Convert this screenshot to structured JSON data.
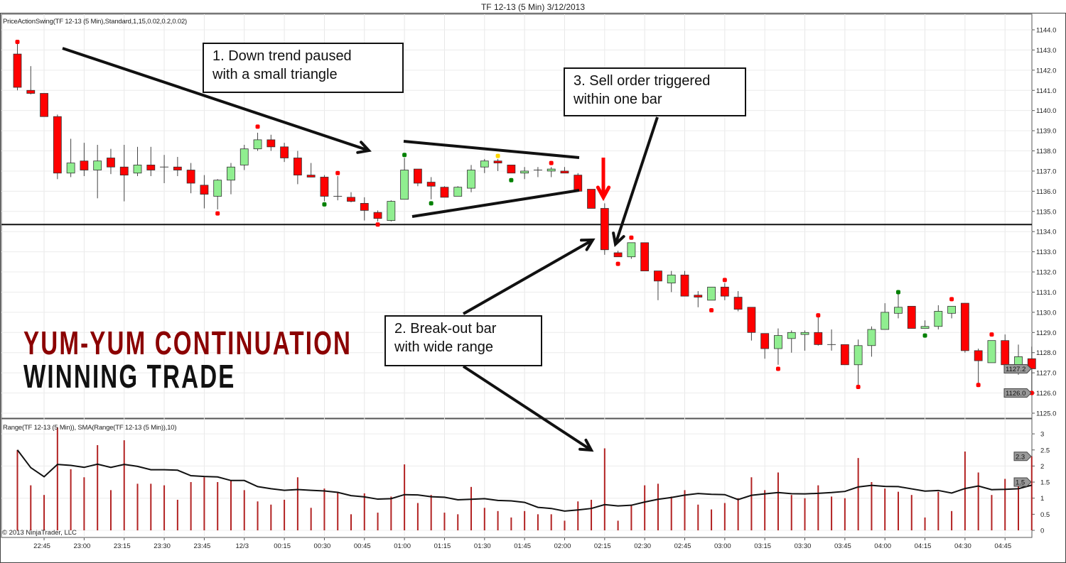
{
  "window_title": "TF 12-13 (5 Min)  3/12/2013",
  "price_indicator_label": "PriceActionSwing(TF 12-13 (5 Min),Standard,1,15,0.02,0.2,0.02)",
  "range_indicator_label": "Range(TF 12-13 (5 Min)), SMA(Range(TF 12-13 (5 Min)),10)",
  "copyright": "© 2013 NinjaTrader, LLC",
  "overlay": {
    "line1": "YUM-YUM CONTINUATION",
    "line2": "WINNING TRADE",
    "line1_color": "#8b0000",
    "line2_color": "#111111"
  },
  "annotations": {
    "note1": {
      "line1": "1. Down trend paused",
      "line2": "with a small triangle"
    },
    "note2": {
      "line1": "2. Break-out bar",
      "line2": "with wide range"
    },
    "note3": {
      "line1": "3. Sell order triggered",
      "line2": "within one bar"
    }
  },
  "chart_data": [
    {
      "type": "candlestick",
      "title": "TF 12-13 (5 Min)  3/12/2013",
      "ylim": [
        1124.7,
        1144.4
      ],
      "yticks": [
        "1125.0",
        "1126.0",
        "1127.0",
        "1128.0",
        "1129.0",
        "1130.0",
        "1131.0",
        "1132.0",
        "1133.0",
        "1134.0",
        "1135.0",
        "1136.0",
        "1137.0",
        "1138.0",
        "1139.0",
        "1140.0",
        "1141.0",
        "1142.0",
        "1143.0",
        "1144.0"
      ],
      "xticks": [
        "22:45",
        "23:00",
        "23:15",
        "23:30",
        "23:45",
        "12/3",
        "00:15",
        "00:30",
        "00:45",
        "01:00",
        "01:15",
        "01:30",
        "01:45",
        "02:00",
        "02:15",
        "02:30",
        "02:45",
        "03:00",
        "03:15",
        "03:30",
        "03:45",
        "04:00",
        "04:15",
        "04:30",
        "04:45"
      ],
      "first_bar_time": "22:35",
      "bar_minutes": 5,
      "grid": true,
      "colors": {
        "up": "#90ee90",
        "down": "#ff0000",
        "outline": "#333333"
      },
      "support_line": 1134.35,
      "price_badges": [
        "1127.2",
        "1126.0"
      ],
      "ohlc": [
        [
          1142.8,
          1143.5,
          1141.0,
          1141.15
        ],
        [
          1141.0,
          1142.2,
          1140.8,
          1140.85
        ],
        [
          1140.85,
          1140.85,
          1139.7,
          1139.7
        ],
        [
          1139.7,
          1139.8,
          1136.6,
          1136.9
        ],
        [
          1136.9,
          1138.6,
          1136.7,
          1137.4
        ],
        [
          1137.5,
          1138.4,
          1136.75,
          1137.05
        ],
        [
          1137.05,
          1138.3,
          1135.65,
          1137.5
        ],
        [
          1137.65,
          1138.1,
          1136.85,
          1137.2
        ],
        [
          1137.2,
          1138.3,
          1135.5,
          1136.8
        ],
        [
          1136.9,
          1138.2,
          1136.75,
          1137.3
        ],
        [
          1137.3,
          1138.2,
          1136.75,
          1137.05
        ],
        [
          1137.2,
          1137.8,
          1136.4,
          1137.2
        ],
        [
          1137.2,
          1137.7,
          1136.75,
          1137.05
        ],
        [
          1137.05,
          1137.4,
          1135.9,
          1136.4
        ],
        [
          1136.3,
          1136.8,
          1135.15,
          1135.85
        ],
        [
          1135.75,
          1136.6,
          1135.1,
          1136.55
        ],
        [
          1136.55,
          1137.4,
          1135.85,
          1137.2
        ],
        [
          1137.3,
          1138.3,
          1137.05,
          1138.1
        ],
        [
          1138.1,
          1138.9,
          1138.0,
          1138.55
        ],
        [
          1138.55,
          1138.8,
          1138.0,
          1138.2
        ],
        [
          1138.2,
          1138.4,
          1137.45,
          1137.65
        ],
        [
          1137.65,
          1138.0,
          1136.35,
          1136.8
        ],
        [
          1136.8,
          1137.4,
          1136.7,
          1136.7
        ],
        [
          1136.7,
          1136.8,
          1135.5,
          1135.75
        ],
        [
          1135.75,
          1136.75,
          1135.55,
          1135.75
        ],
        [
          1135.7,
          1135.95,
          1135.45,
          1135.5
        ],
        [
          1135.4,
          1135.7,
          1134.55,
          1135.05
        ],
        [
          1134.95,
          1135.05,
          1134.5,
          1134.65
        ],
        [
          1134.55,
          1135.55,
          1134.5,
          1135.5
        ],
        [
          1135.6,
          1137.65,
          1135.6,
          1137.05
        ],
        [
          1137.1,
          1137.1,
          1136.25,
          1136.4
        ],
        [
          1136.45,
          1136.7,
          1135.6,
          1136.25
        ],
        [
          1136.2,
          1136.25,
          1135.7,
          1135.7
        ],
        [
          1135.75,
          1136.25,
          1135.75,
          1136.2
        ],
        [
          1136.15,
          1137.3,
          1135.95,
          1137.05
        ],
        [
          1137.2,
          1137.6,
          1136.9,
          1137.5
        ],
        [
          1137.5,
          1137.6,
          1137.0,
          1137.4
        ],
        [
          1137.3,
          1137.3,
          1136.9,
          1136.9
        ],
        [
          1136.9,
          1137.2,
          1136.6,
          1137.0
        ],
        [
          1137.05,
          1137.2,
          1136.7,
          1137.05
        ],
        [
          1137.0,
          1137.2,
          1136.7,
          1137.1
        ],
        [
          1137.0,
          1137.2,
          1136.9,
          1136.9
        ],
        [
          1136.8,
          1136.9,
          1136.0,
          1136.0
        ],
        [
          1136.1,
          1136.1,
          1135.15,
          1135.15
        ],
        [
          1135.15,
          1135.4,
          1132.85,
          1133.1
        ],
        [
          1132.95,
          1133.05,
          1132.75,
          1132.75
        ],
        [
          1132.75,
          1133.45,
          1132.65,
          1133.45
        ],
        [
          1133.45,
          1133.45,
          1132.05,
          1132.05
        ],
        [
          1132.05,
          1132.05,
          1130.6,
          1131.55
        ],
        [
          1131.45,
          1132.05,
          1131.0,
          1131.85
        ],
        [
          1131.85,
          1132.05,
          1130.8,
          1130.8
        ],
        [
          1130.85,
          1131.05,
          1130.25,
          1130.75
        ],
        [
          1130.6,
          1131.25,
          1130.6,
          1131.25
        ],
        [
          1131.25,
          1131.45,
          1130.6,
          1130.8
        ],
        [
          1130.75,
          1131.05,
          1130.05,
          1130.15
        ],
        [
          1130.25,
          1130.25,
          1128.6,
          1129.0
        ],
        [
          1128.95,
          1128.95,
          1127.7,
          1128.2
        ],
        [
          1128.2,
          1129.2,
          1127.4,
          1128.85
        ],
        [
          1128.7,
          1129.1,
          1128.0,
          1129.0
        ],
        [
          1128.9,
          1129.1,
          1128.1,
          1129.0
        ],
        [
          1129.0,
          1129.75,
          1128.35,
          1128.4
        ],
        [
          1128.4,
          1129.15,
          1128.1,
          1128.4
        ],
        [
          1128.4,
          1128.4,
          1127.4,
          1127.4
        ],
        [
          1127.4,
          1128.65,
          1126.4,
          1128.35
        ],
        [
          1128.35,
          1129.3,
          1127.8,
          1129.15
        ],
        [
          1129.15,
          1130.45,
          1129.15,
          1130.0
        ],
        [
          1129.95,
          1130.9,
          1129.7,
          1130.25
        ],
        [
          1130.3,
          1130.3,
          1129.2,
          1129.2
        ],
        [
          1129.2,
          1129.6,
          1129.2,
          1129.3
        ],
        [
          1129.3,
          1130.35,
          1129.15,
          1130.05
        ],
        [
          1129.95,
          1130.3,
          1129.7,
          1130.3
        ],
        [
          1130.45,
          1130.45,
          1128.0,
          1128.1
        ],
        [
          1128.1,
          1128.2,
          1126.4,
          1127.6
        ],
        [
          1127.5,
          1128.6,
          1127.5,
          1128.6
        ],
        [
          1128.6,
          1128.9,
          1127.3,
          1127.4
        ],
        [
          1127.4,
          1128.4,
          1126.9,
          1127.8
        ],
        [
          1127.7,
          1128.3,
          1126.0,
          1127.2
        ]
      ],
      "swing_markers": [
        {
          "bar": 1,
          "price": 1143.4,
          "color": "#ff0000"
        },
        {
          "bar": 16,
          "price": 1134.9,
          "color": "#ff0000"
        },
        {
          "bar": 19,
          "price": 1139.2,
          "color": "#ff0000"
        },
        {
          "bar": 24,
          "price": 1135.35,
          "color": "#008000"
        },
        {
          "bar": 25,
          "price": 1136.9,
          "color": "#ff0000"
        },
        {
          "bar": 28,
          "price": 1134.35,
          "color": "#ff0000"
        },
        {
          "bar": 30,
          "price": 1137.8,
          "color": "#008000"
        },
        {
          "bar": 32,
          "price": 1135.4,
          "color": "#008000"
        },
        {
          "bar": 37,
          "price": 1137.75,
          "color": "#ffd700"
        },
        {
          "bar": 38,
          "price": 1136.55,
          "color": "#008000"
        },
        {
          "bar": 41,
          "price": 1137.4,
          "color": "#ff0000"
        },
        {
          "bar": 46,
          "price": 1132.4,
          "color": "#ff0000"
        },
        {
          "bar": 47,
          "price": 1133.7,
          "color": "#ff0000"
        },
        {
          "bar": 53,
          "price": 1130.1,
          "color": "#ff0000"
        },
        {
          "bar": 54,
          "price": 1131.6,
          "color": "#ff0000"
        },
        {
          "bar": 58,
          "price": 1127.2,
          "color": "#ff0000"
        },
        {
          "bar": 61,
          "price": 1129.85,
          "color": "#ff0000"
        },
        {
          "bar": 64,
          "price": 1126.3,
          "color": "#ff0000"
        },
        {
          "bar": 67,
          "price": 1131.0,
          "color": "#008000"
        },
        {
          "bar": 69,
          "price": 1128.85,
          "color": "#008000"
        },
        {
          "bar": 71,
          "price": 1130.65,
          "color": "#ff0000"
        },
        {
          "bar": 73,
          "price": 1126.4,
          "color": "#ff0000"
        },
        {
          "bar": 74,
          "price": 1128.9,
          "color": "#ff0000"
        },
        {
          "bar": 77,
          "price": 1126.0,
          "color": "#ff0000"
        }
      ]
    },
    {
      "type": "bar+line",
      "ylim": [
        0,
        3.3
      ],
      "yticks": [
        "0",
        "0.5",
        "1",
        "1.5",
        "2",
        "2.5",
        "3"
      ],
      "series": [
        {
          "name": "Range(TF 12-13 (5 Min))",
          "type": "bar",
          "color": "#b22222"
        },
        {
          "name": "SMA(Range(TF 12-13 (5 Min)),10)",
          "type": "line",
          "color": "#111111",
          "period": 10
        }
      ],
      "range_values": [
        2.5,
        1.4,
        1.1,
        3.2,
        1.9,
        1.65,
        2.65,
        1.25,
        2.8,
        1.45,
        1.45,
        1.4,
        0.95,
        1.5,
        1.65,
        1.5,
        1.55,
        1.25,
        0.9,
        0.8,
        0.95,
        1.65,
        0.7,
        1.3,
        1.2,
        0.5,
        1.15,
        0.55,
        1.05,
        2.05,
        0.85,
        1.1,
        0.55,
        0.5,
        1.35,
        0.7,
        0.6,
        0.4,
        0.6,
        0.5,
        0.5,
        0.3,
        0.9,
        0.95,
        2.55,
        0.3,
        0.8,
        1.4,
        1.45,
        1.05,
        1.25,
        0.8,
        0.65,
        0.85,
        1.0,
        1.65,
        1.25,
        1.8,
        1.1,
        1.0,
        1.4,
        1.05,
        1.0,
        2.25,
        1.5,
        1.3,
        1.2,
        1.1,
        0.4,
        1.2,
        0.6,
        2.45,
        1.8,
        1.1,
        1.6,
        1.5,
        2.3
      ],
      "value_badges": [
        "2.3",
        "1.5"
      ]
    }
  ]
}
